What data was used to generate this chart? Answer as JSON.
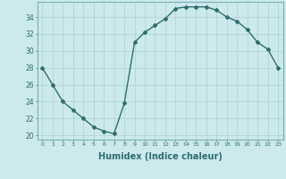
{
  "x": [
    0,
    1,
    2,
    3,
    4,
    5,
    6,
    7,
    8,
    9,
    10,
    11,
    12,
    13,
    14,
    15,
    16,
    17,
    18,
    19,
    20,
    21,
    22,
    23
  ],
  "y": [
    28,
    26,
    24,
    23,
    22,
    21,
    20.5,
    20.2,
    23.8,
    31,
    32.2,
    33,
    33.8,
    35,
    35.2,
    35.2,
    35.2,
    34.8,
    34,
    33.5,
    32.5,
    31,
    30.2,
    28
  ],
  "line_color": "#2d6e6e",
  "marker": "D",
  "marker_size": 2.0,
  "linewidth": 1.0,
  "bg_color": "#cce9ec",
  "grid_color": "#b0d0d4",
  "xlabel": "Humidex (Indice chaleur)",
  "xlabel_fontsize": 7,
  "xlabel_fontweight": "bold",
  "yticks": [
    20,
    22,
    24,
    26,
    28,
    30,
    32,
    34
  ],
  "xticks": [
    0,
    1,
    2,
    3,
    4,
    5,
    6,
    7,
    8,
    9,
    10,
    11,
    12,
    13,
    14,
    15,
    16,
    17,
    18,
    19,
    20,
    21,
    22,
    23
  ],
  "ylim": [
    19.5,
    35.8
  ],
  "xlim": [
    -0.5,
    23.5
  ]
}
